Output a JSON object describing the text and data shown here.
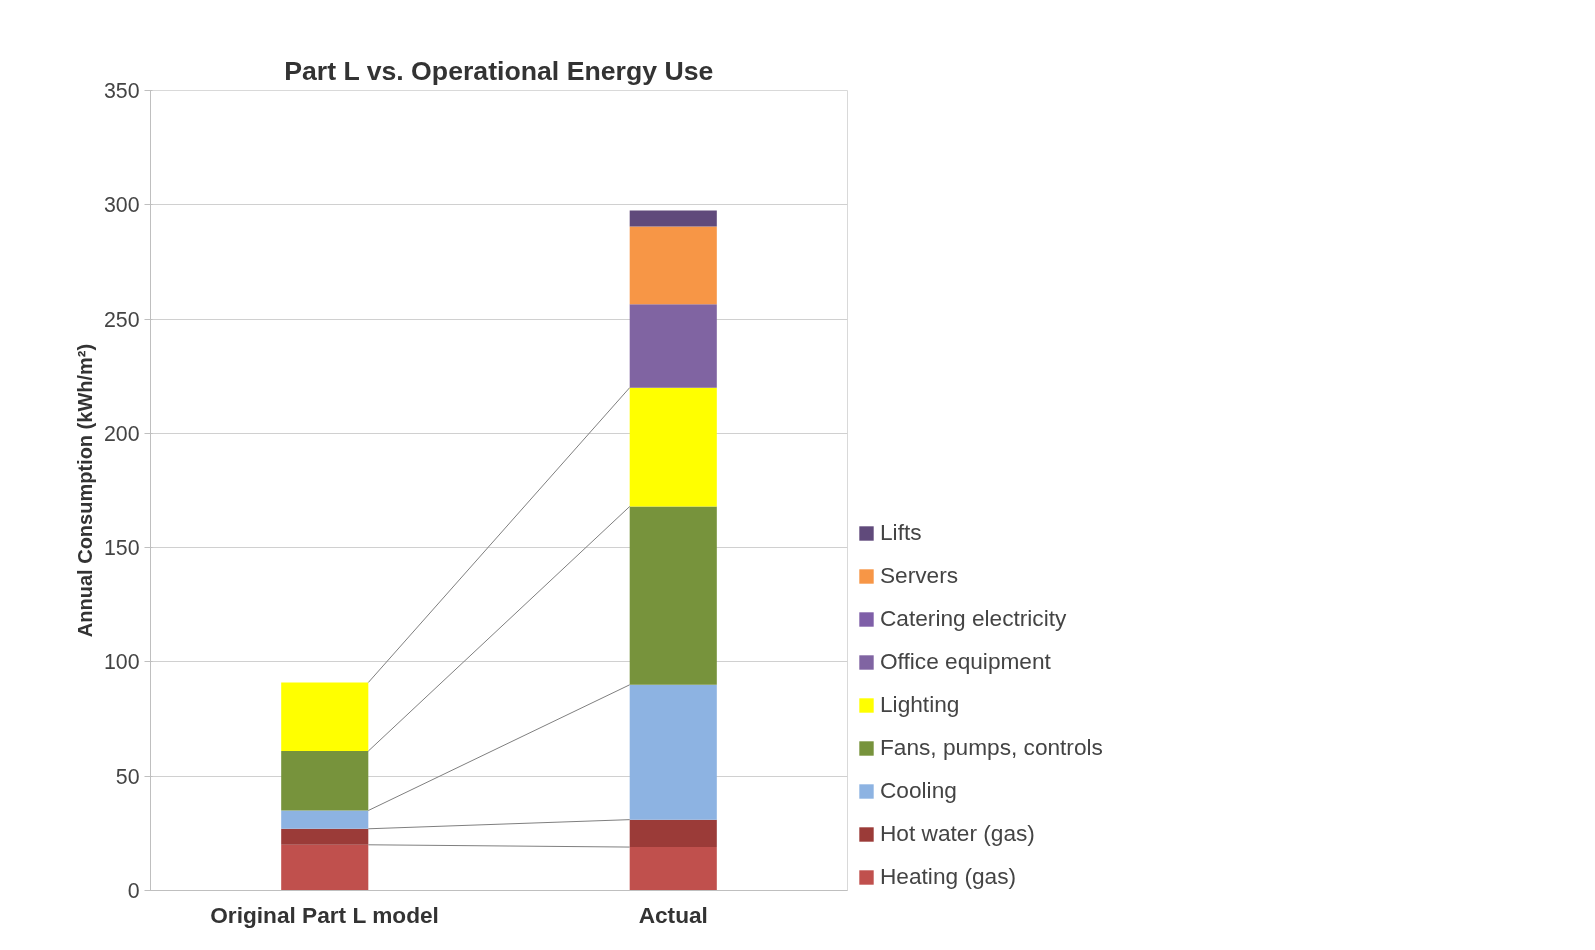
{
  "chart_data": {
    "type": "bar",
    "title": "Part L vs. Operational Energy Use",
    "ylabel": "Annual Consumption (kWh/m²)",
    "categories": [
      "Original Part L model",
      "Actual"
    ],
    "stacked": true,
    "series": [
      {
        "name": "Heating (gas)",
        "color": "#c0504d",
        "values": [
          20,
          19
        ]
      },
      {
        "name": "Hot water (gas)",
        "color": "#9b3b38",
        "values": [
          7,
          12
        ]
      },
      {
        "name": "Cooling",
        "color": "#8db3e2",
        "values": [
          8,
          59
        ]
      },
      {
        "name": "Fans, pumps, controls",
        "color": "#77933c",
        "values": [
          26,
          78
        ]
      },
      {
        "name": "Lighting",
        "color": "#ffff00",
        "values": [
          30,
          52
        ]
      },
      {
        "name": "Office equipment",
        "color": "#8064a2",
        "values": [
          null,
          36.5
        ]
      },
      {
        "name": "Catering electricity",
        "color": "#7f5fa8",
        "values": [
          null,
          0
        ]
      },
      {
        "name": "Servers",
        "color": "#f79646",
        "values": [
          null,
          34
        ]
      },
      {
        "name": "Lifts",
        "color": "#604a7b",
        "values": [
          null,
          7
        ]
      }
    ],
    "ylim": [
      0,
      350
    ],
    "yticks": [
      0,
      50,
      100,
      150,
      200,
      250,
      300,
      350
    ],
    "grid": "y",
    "legend": "right"
  }
}
